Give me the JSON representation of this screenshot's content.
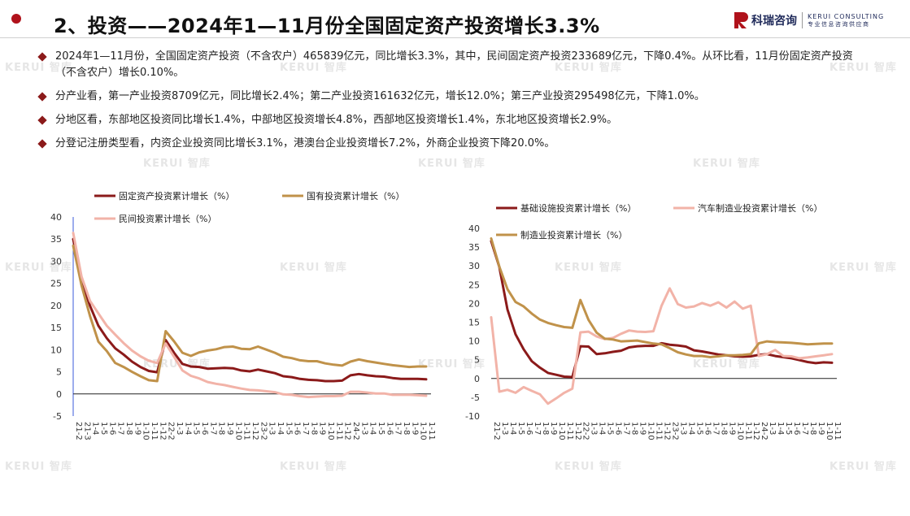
{
  "header": {
    "title": "2、投资——2024年1—11月份全国固定资产投资增长3.3%",
    "logo_cn": "科瑞咨询",
    "logo_en": "KERUI CONSULTING",
    "logo_sub": "专业信息咨询供应商"
  },
  "watermark": "KERUI 智库",
  "bullets": [
    "2024年1—11月份，全国固定资产投资（不含农户）465839亿元，同比增长3.3%，其中，民间固定资产投资233689亿元，下降0.4%。从环比看，11月份固定资产投资（不含农户）增长0.10%。",
    "分产业看，第一产业投资8709亿元，同比增长2.4%；第二产业投资161632亿元，增长12.0%；第三产业投资295498亿元，下降1.0%。",
    "分地区看，东部地区投资同比增长1.4%，中部地区投资增长4.8%，西部地区投资增长1.4%，东北地区投资增长2.9%。",
    "分登记注册类型看，内资企业投资同比增长3.1%，港澳台企业投资增长7.2%，外商企业投资下降20.0%。"
  ],
  "colors": {
    "accent": "#b0121b",
    "series_dark_red": "#8b1a1a",
    "series_gold": "#c0924a",
    "series_pink": "#f2b3a8"
  },
  "chart_data": [
    {
      "type": "line",
      "ylim": [
        -5,
        40
      ],
      "yticks": [
        -5,
        0,
        5,
        10,
        15,
        20,
        25,
        30,
        35,
        40
      ],
      "legend_placement": "top",
      "categories": [
        "21-2",
        "21-3",
        "21-4",
        "21-5",
        "21-6",
        "21-7",
        "21-8",
        "21-9",
        "21-10",
        "21-11",
        "21-12",
        "22-2",
        "22-3",
        "22-4",
        "22-5",
        "22-6",
        "22-7",
        "22-8",
        "22-9",
        "22-10",
        "22-11",
        "22-12",
        "23-2",
        "23-3",
        "23-4",
        "23-5",
        "23-6",
        "23-7",
        "23-8",
        "23-9",
        "23-10",
        "23-11",
        "23-12",
        "24-2",
        "24-3",
        "24-4",
        "24-5",
        "24-6",
        "24-7",
        "24-8",
        "24-9",
        "24-10",
        "24-11"
      ],
      "tick_labels": [
        "21-2",
        "21-3",
        "1-4",
        "1-5",
        "1-6",
        "1-7",
        "1-8",
        "1-9",
        "1-10",
        "1-11",
        "1-12",
        "22-2",
        "1-3",
        "1-4",
        "1-5",
        "1-6",
        "1-7",
        "1-8",
        "1-9",
        "1-10",
        "1-11",
        "1-12",
        "23-2",
        "1-3",
        "1-4",
        "1-5",
        "1-6",
        "1-7",
        "1-8",
        "1-9",
        "1-10",
        "1-11",
        "1-12",
        "24-2",
        "1-3",
        "1-4",
        "1-5",
        "1-6",
        "1-7",
        "1-8",
        "1-9",
        "1-10",
        "1-11"
      ],
      "series": [
        {
          "name": "固定资产投资累计增长（%）",
          "color": "#8b1a1a",
          "values": [
            35.0,
            25.6,
            19.9,
            15.4,
            12.6,
            10.3,
            8.9,
            7.3,
            6.1,
            5.2,
            4.9,
            12.2,
            9.3,
            6.8,
            6.2,
            6.1,
            5.7,
            5.8,
            5.9,
            5.8,
            5.3,
            5.1,
            5.5,
            5.1,
            4.7,
            4.0,
            3.8,
            3.4,
            3.2,
            3.1,
            2.9,
            2.9,
            3.0,
            4.2,
            4.5,
            4.2,
            4.0,
            3.9,
            3.6,
            3.4,
            3.4,
            3.4,
            3.3
          ]
        },
        {
          "name": "国有投资累计增长（%）",
          "color": "#c0924a",
          "values": [
            33.5,
            24.5,
            17.6,
            11.8,
            9.7,
            7.0,
            6.1,
            5.0,
            4.0,
            3.1,
            2.9,
            14.2,
            11.9,
            9.3,
            8.6,
            9.4,
            9.8,
            10.1,
            10.6,
            10.7,
            10.2,
            10.1,
            10.7,
            10.0,
            9.3,
            8.4,
            8.1,
            7.6,
            7.4,
            7.4,
            6.9,
            6.6,
            6.4,
            7.3,
            7.8,
            7.4,
            7.1,
            6.8,
            6.5,
            6.3,
            6.1,
            6.2,
            6.2
          ]
        },
        {
          "name": "民间投资累计增长（%）",
          "color": "#f2b3a8",
          "values": [
            36.4,
            26.5,
            21.0,
            18.2,
            15.4,
            13.4,
            11.5,
            9.8,
            8.5,
            7.5,
            7.0,
            11.4,
            8.4,
            5.3,
            4.1,
            3.5,
            2.7,
            2.3,
            2.0,
            1.6,
            1.2,
            0.9,
            0.8,
            0.6,
            0.4,
            -0.1,
            -0.2,
            -0.5,
            -0.7,
            -0.6,
            -0.5,
            -0.5,
            -0.4,
            0.5,
            0.5,
            0.3,
            0.1,
            0.1,
            -0.2,
            -0.2,
            -0.2,
            -0.3,
            -0.4
          ]
        }
      ]
    },
    {
      "type": "line",
      "ylim": [
        -10,
        40
      ],
      "yticks": [
        -10,
        -5,
        0,
        5,
        10,
        15,
        20,
        25,
        30,
        35,
        40
      ],
      "legend_placement": "top",
      "categories": [
        "21-2",
        "21-3",
        "21-4",
        "21-5",
        "21-6",
        "21-7",
        "21-8",
        "21-9",
        "21-10",
        "21-11",
        "21-12",
        "22-2",
        "22-3",
        "22-4",
        "22-5",
        "22-6",
        "22-7",
        "22-8",
        "22-9",
        "22-10",
        "22-11",
        "22-12",
        "23-2",
        "23-3",
        "23-4",
        "23-5",
        "23-6",
        "23-7",
        "23-8",
        "23-9",
        "23-10",
        "23-11",
        "23-12",
        "24-2",
        "24-3",
        "24-4",
        "24-5",
        "24-6",
        "24-7",
        "24-8",
        "24-9",
        "24-10",
        "24-11"
      ],
      "tick_labels": [
        "21-2",
        "1-3",
        "1-4",
        "1-5",
        "1-6",
        "1-7",
        "1-8",
        "1-9",
        "1-10",
        "1-11",
        "1-12",
        "22-2",
        "1-3",
        "1-4",
        "1-5",
        "1-6",
        "1-7",
        "1-8",
        "1-9",
        "1-10",
        "1-11",
        "1-12",
        "23-2",
        "1-3",
        "1-4",
        "1-5",
        "1-6",
        "1-7",
        "1-8",
        "1-9",
        "1-10",
        "1-11",
        "1-12",
        "24-2",
        "1-3",
        "1-4",
        "1-5",
        "1-6",
        "1-7",
        "1-8",
        "1-9",
        "1-10",
        "1-11"
      ],
      "series": [
        {
          "name": "基础设施投资累计增长（%）",
          "color": "#8b1a1a",
          "values": [
            36.6,
            29.7,
            18.4,
            11.8,
            7.8,
            4.6,
            2.9,
            1.5,
            1.0,
            0.5,
            0.4,
            8.6,
            8.5,
            6.5,
            6.7,
            7.1,
            7.4,
            8.3,
            8.6,
            8.7,
            8.7,
            9.4,
            9.0,
            8.8,
            8.5,
            7.5,
            7.2,
            6.8,
            6.4,
            6.2,
            5.9,
            5.8,
            5.9,
            6.3,
            6.5,
            6.0,
            5.7,
            5.4,
            4.9,
            4.4,
            4.1,
            4.3,
            4.2
          ]
        },
        {
          "name": "汽车制造业投资累计增长（%）",
          "color": "#f2b3a8",
          "values": [
            16.3,
            -3.5,
            -3.0,
            -3.8,
            -2.3,
            -3.3,
            -4.2,
            -6.7,
            -5.3,
            -3.8,
            -2.7,
            12.3,
            12.5,
            11.2,
            10.5,
            10.8,
            11.9,
            12.8,
            12.5,
            12.4,
            12.6,
            19.4,
            24.0,
            19.8,
            18.9,
            19.2,
            20.1,
            19.4,
            20.3,
            18.9,
            20.5,
            18.6,
            19.4,
            6.0,
            6.5,
            7.6,
            6.0,
            5.9,
            5.4,
            5.6,
            5.9,
            6.2,
            6.5
          ]
        },
        {
          "name": "制造业投资累计增长（%）",
          "color": "#c0924a",
          "values": [
            37.3,
            29.8,
            23.8,
            20.4,
            19.2,
            17.3,
            15.7,
            14.8,
            14.2,
            13.7,
            13.5,
            20.9,
            15.6,
            12.2,
            10.6,
            10.4,
            9.9,
            10.0,
            10.1,
            9.7,
            9.3,
            9.1,
            8.1,
            7.0,
            6.4,
            6.0,
            6.0,
            5.7,
            5.9,
            6.2,
            6.2,
            6.3,
            6.5,
            9.4,
            9.9,
            9.7,
            9.6,
            9.5,
            9.3,
            9.1,
            9.2,
            9.3,
            9.3
          ]
        }
      ]
    }
  ]
}
